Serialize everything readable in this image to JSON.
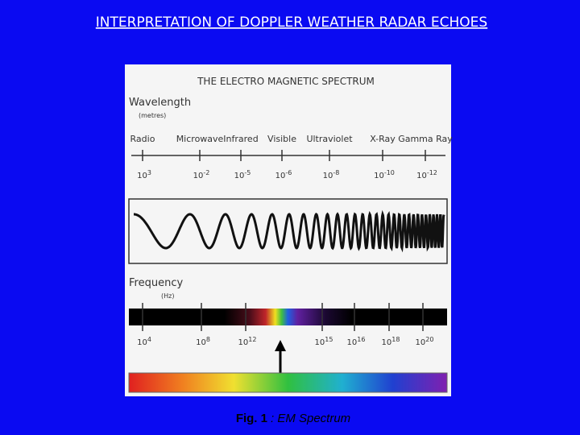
{
  "slide": {
    "title": "INTERPRETATION OF DOPPLER WEATHER RADAR ECHOES",
    "figure": {
      "heading": "THE ELECTRO MAGNETIC SPECTRUM",
      "wavelength": {
        "label": "Wavelength",
        "unit": "(metres)",
        "bands": [
          "Radio",
          "Microwave",
          "Infrared",
          "Visible",
          "Ultraviolet",
          "X-Ray",
          "Gamma Ray"
        ],
        "scale": [
          {
            "base": "10",
            "exp": "3"
          },
          {
            "base": "10",
            "exp": "-2"
          },
          {
            "base": "10",
            "exp": "-5"
          },
          {
            "base": "10",
            "exp": "-6"
          },
          {
            "base": "10",
            "exp": "-8"
          },
          {
            "base": "10",
            "exp": "-10"
          },
          {
            "base": "10",
            "exp": "-12"
          }
        ]
      },
      "frequency": {
        "label": "Frequency",
        "unit": "(Hz)",
        "scale": [
          {
            "base": "10",
            "exp": "4"
          },
          {
            "base": "10",
            "exp": "8"
          },
          {
            "base": "10",
            "exp": "12"
          },
          {
            "base": "10",
            "exp": "15"
          },
          {
            "base": "10",
            "exp": "16"
          },
          {
            "base": "10",
            "exp": "18"
          },
          {
            "base": "10",
            "exp": "20"
          }
        ]
      }
    },
    "caption": {
      "label": "Fig. 1",
      "text": ": EM Spectrum"
    }
  }
}
